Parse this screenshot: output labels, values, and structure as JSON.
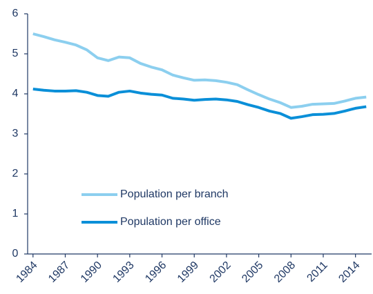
{
  "chart_data": {
    "type": "line",
    "x": [
      1984,
      1985,
      1986,
      1987,
      1988,
      1989,
      1990,
      1991,
      1992,
      1993,
      1994,
      1995,
      1996,
      1997,
      1998,
      1999,
      2000,
      2001,
      2002,
      2003,
      2004,
      2005,
      2006,
      2007,
      2008,
      2009,
      2010,
      2011,
      2012,
      2013,
      2014,
      2015
    ],
    "series": [
      {
        "name": "Population per branch",
        "color": "#8ccfef",
        "values": [
          5.5,
          5.43,
          5.35,
          5.29,
          5.22,
          5.1,
          4.9,
          4.83,
          4.92,
          4.9,
          4.76,
          4.67,
          4.6,
          4.47,
          4.4,
          4.34,
          4.35,
          4.33,
          4.29,
          4.23,
          4.1,
          3.98,
          3.87,
          3.78,
          3.66,
          3.69,
          3.74,
          3.75,
          3.76,
          3.82,
          3.89,
          3.92
        ]
      },
      {
        "name": "Population per office",
        "color": "#0a8fd8",
        "values": [
          4.12,
          4.09,
          4.07,
          4.07,
          4.08,
          4.04,
          3.96,
          3.94,
          4.04,
          4.07,
          4.02,
          3.99,
          3.97,
          3.89,
          3.87,
          3.84,
          3.86,
          3.87,
          3.85,
          3.81,
          3.73,
          3.66,
          3.57,
          3.51,
          3.39,
          3.43,
          3.48,
          3.49,
          3.51,
          3.57,
          3.64,
          3.68
        ]
      }
    ],
    "xlim": [
      1983.5,
      2015.5
    ],
    "xticks": [
      1984,
      1987,
      1990,
      1993,
      1996,
      1999,
      2002,
      2005,
      2008,
      2011,
      2014
    ],
    "ylim": [
      0,
      6
    ],
    "yticks": [
      0,
      1,
      2,
      3,
      4,
      5,
      6
    ],
    "legend": "lower-left"
  }
}
